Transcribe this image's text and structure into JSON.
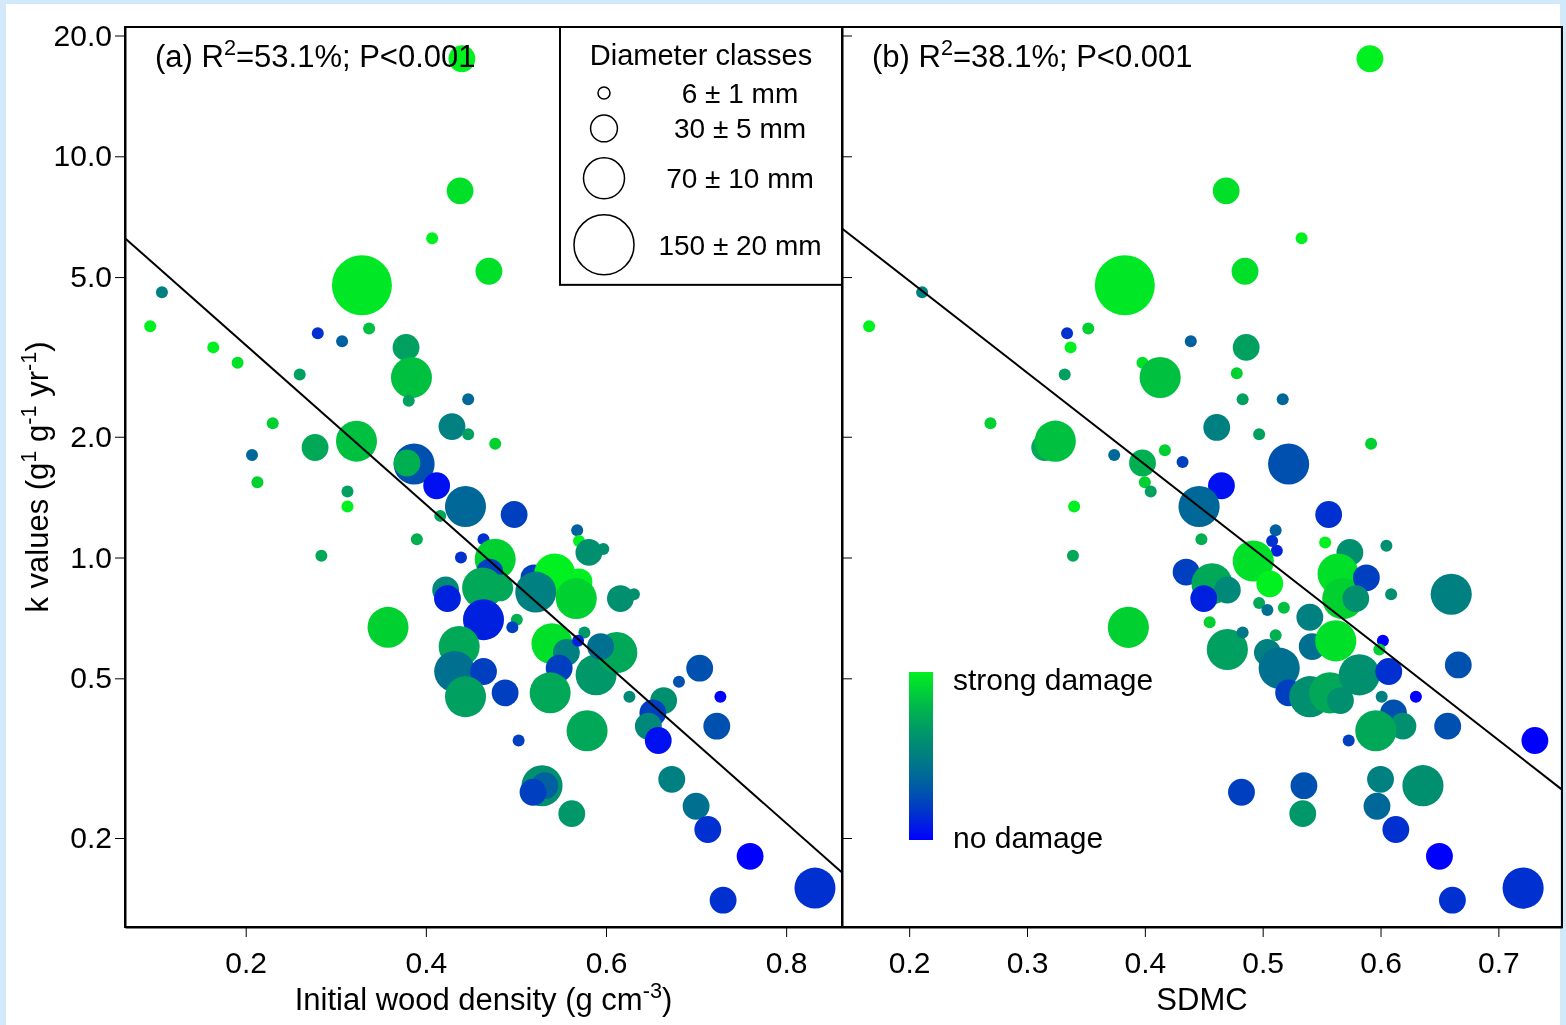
{
  "chart_data": [
    {
      "type": "bubble",
      "xlabel": "Initial wood density (g cm$^{-3}$)",
      "ylabel": "k values (g$^{1}$ g$^{-1}$ yr$^{-1}$)",
      "annotations": [
        "(a) R$^{2}$=53.1%; P<0.001"
      ],
      "xlim": [
        0.066,
        0.862
      ],
      "ylim": [
        0.12,
        21
      ],
      "xticks": [
        0.2,
        0.4,
        0.6,
        0.8
      ],
      "yticks": [
        {
          "value": 20,
          "label": "20.0"
        },
        {
          "value": 10,
          "label": "10.0"
        },
        {
          "value": 5,
          "label": "5.0"
        },
        {
          "value": 2,
          "label": "2.0"
        },
        {
          "value": 1,
          "label": "1.0"
        },
        {
          "value": 0.5,
          "label": "0.5"
        },
        {
          "value": 0.2,
          "label": "0.2"
        }
      ],
      "log": "y",
      "legend_title": "Diameter classes",
      "size_legend": [
        {
          "value": 6,
          "label": "6 ± 1 mm"
        },
        {
          "value": 30,
          "label": "30 ± 5 mm"
        },
        {
          "value": 70,
          "label": "70 ± 10 mm"
        },
        {
          "value": 150,
          "label": "150 ± 20 mm"
        }
      ],
      "series": [
        {
          "x": [
            0.44,
            0.438,
            0.407,
            0.47,
            0.329,
            0.107,
            0.094,
            0.337,
            0.28,
            0.307,
            0.164,
            0.191,
            0.26,
            0.378,
            0.384,
            0.381,
            0.447,
            0.429,
            0.447,
            0.477,
            0.23,
            0.277,
            0.323,
            0.207,
            0.213,
            0.313,
            0.313,
            0.284,
            0.387,
            0.379,
            0.412,
            0.444,
            0.416,
            0.39,
            0.498,
            0.439,
            0.568,
            0.464,
            0.477,
            0.57,
            0.581,
            0.597,
            0.52,
            0.543,
            0.57,
            0.567,
            0.522,
            0.616,
            0.631,
            0.422,
            0.424,
            0.471,
            0.463,
            0.464,
            0.482,
            0.501,
            0.496,
            0.358,
            0.54,
            0.556,
            0.548,
            0.437,
            0.432,
            0.464,
            0.444,
            0.488,
            0.538,
            0.589,
            0.612,
            0.594,
            0.576,
            0.569,
            0.626,
            0.664,
            0.652,
            0.647,
            0.658,
            0.704,
            0.681,
            0.727,
            0.723,
            0.503,
            0.579,
            0.673,
            0.529,
            0.532,
            0.519,
            0.562,
            0.7,
            0.713,
            0.76,
            0.73,
            0.832
          ],
          "values": [
            17.5,
            8.2,
            6.25,
            5.17,
            4.77,
            4.58,
            3.77,
            3.72,
            3.62,
            3.46,
            3.34,
            3.06,
            2.86,
            3.34,
            2.81,
            2.46,
            2.48,
            2.12,
            2.03,
            1.92,
            2.16,
            1.88,
            1.95,
            1.8,
            1.54,
            1.46,
            1.34,
            1.01,
            1.71,
            1.72,
            1.51,
            1.34,
            1.27,
            1.11,
            1.28,
            1.0,
            1.17,
            1.11,
            0.99,
            1.1,
            1.03,
            1.05,
            0.89,
            0.91,
            0.87,
            0.79,
            0.82,
            0.79,
            0.81,
            0.83,
            0.79,
            0.92,
            0.84,
            0.7,
            0.84,
            0.7,
            0.67,
            0.67,
            0.61,
            0.58,
            0.53,
            0.6,
            0.52,
            0.52,
            0.45,
            0.46,
            0.46,
            0.51,
            0.58,
            0.6,
            0.65,
            0.62,
            0.45,
            0.44,
            0.41,
            0.38,
            0.35,
            0.53,
            0.49,
            0.45,
            0.38,
            0.35,
            0.37,
            0.28,
            0.27,
            0.27,
            0.26,
            0.23,
            0.24,
            0.21,
            0.18,
            0.14,
            0.15
          ],
          "sizes": [
            30,
            30,
            6,
            30,
            150,
            6,
            6,
            6,
            6,
            6,
            6,
            6,
            6,
            30,
            70,
            6,
            6,
            30,
            6,
            6,
            6,
            30,
            70,
            6,
            6,
            6,
            6,
            6,
            70,
            30,
            30,
            70,
            6,
            6,
            30,
            6,
            6,
            6,
            70,
            6,
            30,
            6,
            30,
            70,
            30,
            70,
            70,
            30,
            6,
            30,
            30,
            30,
            70,
            70,
            30,
            6,
            6,
            70,
            70,
            30,
            30,
            70,
            70,
            30,
            70,
            30,
            70,
            70,
            70,
            30,
            6,
            6,
            6,
            30,
            30,
            30,
            30,
            30,
            6,
            6,
            30,
            6,
            70,
            30,
            70,
            30,
            30,
            30,
            30,
            30,
            30,
            30,
            70
          ],
          "colors": [
            "#00f020",
            "#00e028",
            "#00f020",
            "#00e028",
            "#00e825",
            "#008080",
            "#00f020",
            "#00c040",
            "#0030d0",
            "#0060a0",
            "#00f020",
            "#00e028",
            "#00a060",
            "#00a060",
            "#00c040",
            "#00a060",
            "#006898",
            "#008080",
            "#00a060",
            "#00d030",
            "#00d030",
            "#00a858",
            "#00c040",
            "#006898",
            "#00d030",
            "#00a060",
            "#00f020",
            "#00a858",
            "#0050b0",
            "#00b050",
            "#0010f0",
            "#006898",
            "#00a858",
            "#00b050",
            "#0040c0",
            "#0030d0",
            "#0060a0",
            "#0030d0",
            "#00d030",
            "#00f020",
            "#009070",
            "#009070",
            "#0040c0",
            "#00f020",
            "#00f020",
            "#00d030",
            "#008080",
            "#009070",
            "#009070",
            "#008878",
            "#0020e0",
            "#0040c0",
            "#00a858",
            "#0020e0",
            "#00a858",
            "#00b050",
            "#0040c0",
            "#00d030",
            "#00e028",
            "#008080",
            "#0040c0",
            "#00a858",
            "#007090",
            "#0040c0",
            "#00a060",
            "#0040c0",
            "#00a858",
            "#009868",
            "#00a858",
            "#007090",
            "#009868",
            "#0020e0",
            "#008878",
            "#009070",
            "#0040c0",
            "#008878",
            "#0010f0",
            "#0050b0",
            "#0050b0",
            "#0000ff",
            "#0050b0",
            "#0040c0",
            "#00a858",
            "#008080",
            "#009070",
            "#0060a0",
            "#0040c0",
            "#009868",
            "#007090",
            "#0030d0",
            "#0000ff",
            "#0030d0",
            "#0030d0"
          ]
        },
        {
          "type": "line",
          "x": [
            0.066,
            0.862
          ],
          "values": [
            6.25,
            0.164
          ],
          "color": "#000000"
        }
      ]
    },
    {
      "type": "bubble",
      "xlabel": "SDMC",
      "annotations": [
        "(b) R$^{2}$=38.1%; P<0.001",
        "strong damage",
        "no damage"
      ],
      "xlim": [
        0.143,
        0.754
      ],
      "ylim": [
        0.12,
        21
      ],
      "xticks": [
        0.2,
        0.3,
        0.4,
        0.5,
        0.6,
        0.7
      ],
      "yticks": [
        20,
        10,
        5,
        2,
        1,
        0.5,
        0.2
      ],
      "log": "y",
      "tick_labels": "x",
      "series": [
        {
          "x": [
            0.591,
            0.469,
            0.533,
            0.485,
            0.383,
            0.211,
            0.166,
            0.352,
            0.334,
            0.439,
            0.337,
            0.398,
            0.332,
            0.486,
            0.413,
            0.483,
            0.517,
            0.461,
            0.497,
            0.592,
            0.269,
            0.315,
            0.324,
            0.374,
            0.4,
            0.405,
            0.34,
            0.339,
            0.522,
            0.398,
            0.465,
            0.446,
            0.448,
            0.556,
            0.512,
            0.511,
            0.508,
            0.492,
            0.553,
            0.574,
            0.605,
            0.435,
            0.564,
            0.506,
            0.568,
            0.588,
            0.609,
            0.66,
            0.579,
            0.457,
            0.47,
            0.45,
            0.455,
            0.497,
            0.504,
            0.518,
            0.54,
            0.602,
            0.599,
            0.666,
            0.47,
            0.483,
            0.511,
            0.504,
            0.514,
            0.522,
            0.542,
            0.562,
            0.54,
            0.557,
            0.566,
            0.582,
            0.607,
            0.601,
            0.63,
            0.611,
            0.619,
            0.657,
            0.596,
            0.573,
            0.731,
            0.6,
            0.636,
            0.482,
            0.535,
            0.534,
            0.597,
            0.613,
            0.65,
            0.661,
            0.721,
            0.386,
            0.417,
            0.432,
            0.478
          ],
          "values": [
            17.5,
            8.2,
            6.25,
            5.17,
            4.77,
            4.58,
            3.77,
            3.72,
            3.62,
            3.46,
            3.34,
            3.06,
            2.86,
            3.34,
            2.81,
            2.48,
            2.48,
            2.11,
            2.03,
            1.92,
            2.16,
            1.88,
            1.95,
            1.8,
            1.54,
            1.46,
            1.34,
            1.01,
            1.71,
            1.72,
            1.51,
            1.34,
            1.11,
            1.28,
            1.04,
            1.17,
            1.1,
            0.98,
            1.09,
            1.03,
            1.07,
            0.92,
            0.91,
            0.86,
            0.79,
            0.89,
            0.81,
            0.81,
            0.79,
            0.86,
            0.83,
            0.79,
            0.69,
            0.77,
            0.74,
            0.75,
            0.71,
            0.62,
            0.59,
            0.54,
            0.59,
            0.65,
            0.64,
            0.58,
            0.53,
            0.46,
            0.6,
            0.62,
            0.45,
            0.46,
            0.44,
            0.51,
            0.52,
            0.45,
            0.45,
            0.41,
            0.38,
            0.38,
            0.37,
            0.35,
            0.35,
            0.28,
            0.27,
            0.26,
            0.27,
            0.23,
            0.24,
            0.21,
            0.18,
            0.14,
            0.15,
            0.67,
            1.85,
            1.73,
            2.88
          ],
          "sizes": [
            0.2,
            0.2,
            0.04,
            0.2,
            1,
            0.04,
            0.04,
            0.04,
            0.04,
            0.04,
            0.04,
            0.04,
            0.04,
            0.2,
            0.47,
            0.04,
            0.04,
            0.2,
            0.04,
            0.04,
            0.04,
            0.2,
            0.47,
            0.04,
            0.04,
            0.04,
            0.04,
            0.04,
            0.47,
            0.2,
            0.2,
            0.47,
            0.04,
            0.2,
            0.04,
            0.04,
            0.04,
            0.47,
            0.04,
            0.2,
            0.04,
            0.2,
            0.47,
            0.2,
            0.47,
            0.2,
            0.04,
            0.47,
            0.2,
            0.47,
            0.2,
            0.2,
            0.04,
            0.04,
            0.04,
            0.04,
            0.2,
            0.04,
            0.04,
            0.2,
            0.47,
            0.04,
            0.04,
            0.2,
            0.47,
            0.2,
            0.2,
            0.47,
            0.47,
            0.47,
            0.2,
            0.47,
            0.2,
            0.04,
            0.04,
            0.2,
            0.2,
            0.2,
            0.47,
            0.04,
            0.2,
            0.2,
            0.47,
            0.2,
            0.2,
            0.2,
            0.2,
            0.2,
            0.2,
            0.2,
            0.47,
            0.47,
            0.04,
            0.04,
            0.04
          ],
          "colors": [
            "#00f020",
            "#00e028",
            "#00f020",
            "#00e028",
            "#00e825",
            "#008080",
            "#00f020",
            "#00d030",
            "#0030d0",
            "#0060a0",
            "#00f020",
            "#00e028",
            "#00a060",
            "#00a060",
            "#00c040",
            "#00a060",
            "#006898",
            "#008080",
            "#00a060",
            "#00d030",
            "#00d030",
            "#00a858",
            "#00c040",
            "#006898",
            "#00d030",
            "#00a060",
            "#00f020",
            "#00a858",
            "#0050b0",
            "#00b050",
            "#0010f0",
            "#006898",
            "#00b050",
            "#0030d0",
            "#0020e0",
            "#0060a0",
            "#0030d0",
            "#00e028",
            "#00f020",
            "#009070",
            "#009070",
            "#0040c0",
            "#00e028",
            "#00f020",
            "#00d030",
            "#0040c0",
            "#009070",
            "#008080",
            "#009070",
            "#00a858",
            "#008878",
            "#0020e0",
            "#00d030",
            "#00a858",
            "#007090",
            "#00c040",
            "#008080",
            "#0000ff",
            "#00d030",
            "#0050b0",
            "#00a060",
            "#007888",
            "#00b050",
            "#008080",
            "#007090",
            "#0040c0",
            "#007090",
            "#00e028",
            "#009070",
            "#00a858",
            "#009070",
            "#009070",
            "#0030d0",
            "#008080",
            "#0000ff",
            "#0050b0",
            "#009070",
            "#0050b0",
            "#00a858",
            "#0040c0",
            "#0000ff",
            "#008080",
            "#009070",
            "#0040c0",
            "#0050b0",
            "#009868",
            "#006898",
            "#0030d0",
            "#0000ff",
            "#0030d0",
            "#0030d0",
            "#00d030",
            "#00d030",
            "#0040c0",
            "#00d030"
          ]
        },
        {
          "type": "line",
          "x": [
            0.143,
            0.754
          ],
          "values": [
            6.61,
            0.264
          ],
          "color": "#000000"
        }
      ]
    }
  ]
}
